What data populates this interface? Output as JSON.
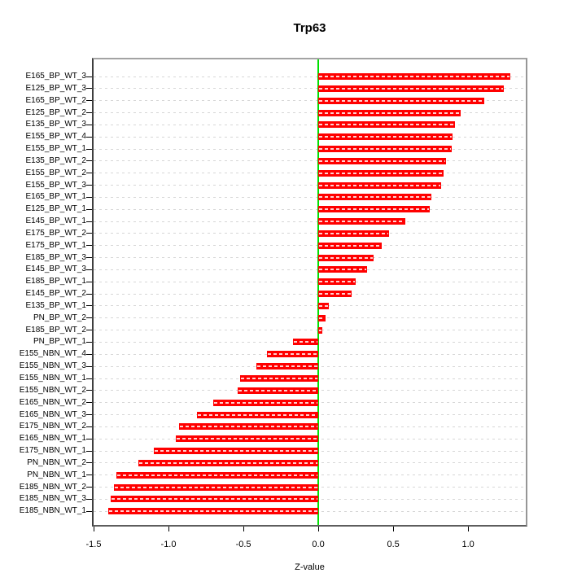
{
  "title": "Trp63",
  "chart_data": {
    "type": "bar",
    "orientation": "horizontal",
    "title": "Trp63",
    "xlabel": "Z-value",
    "ylabel": "",
    "xlim": [
      -1.5,
      1.385
    ],
    "grid": "horizontal-dashed",
    "legend": "none",
    "bar_color": "#ff0000",
    "zero_line_color": "#00e000",
    "gridline_color": "#d6d6d6",
    "x_ticks": [
      -1.5,
      -1.0,
      -0.5,
      0.0,
      0.5,
      1.0
    ],
    "x_tick_labels": [
      "-1.5",
      "-1.0",
      "-0.5",
      "0.0",
      "0.5",
      "1.0"
    ],
    "categories": [
      "E165_BP_WT_3",
      "E125_BP_WT_3",
      "E165_BP_WT_2",
      "E125_BP_WT_2",
      "E135_BP_WT_3",
      "E155_BP_WT_4",
      "E155_BP_WT_1",
      "E135_BP_WT_2",
      "E155_BP_WT_2",
      "E155_BP_WT_3",
      "E165_BP_WT_1",
      "E125_BP_WT_1",
      "E145_BP_WT_1",
      "E175_BP_WT_2",
      "E175_BP_WT_1",
      "E185_BP_WT_3",
      "E145_BP_WT_3",
      "E185_BP_WT_1",
      "E145_BP_WT_2",
      "E135_BP_WT_1",
      "PN_BP_WT_2",
      "E185_BP_WT_2",
      "PN_BP_WT_1",
      "E155_NBN_WT_4",
      "E155_NBN_WT_3",
      "E155_NBN_WT_1",
      "E155_NBN_WT_2",
      "E165_NBN_WT_2",
      "E165_NBN_WT_3",
      "E175_NBN_WT_2",
      "E165_NBN_WT_1",
      "E175_NBN_WT_1",
      "PN_NBN_WT_2",
      "PN_NBN_WT_1",
      "E185_NBN_WT_2",
      "E185_NBN_WT_3",
      "E185_NBN_WT_1"
    ],
    "values": [
      1.28,
      1.24,
      1.11,
      0.95,
      0.91,
      0.895,
      0.89,
      0.85,
      0.835,
      0.82,
      0.757,
      0.745,
      0.58,
      0.473,
      0.423,
      0.367,
      0.328,
      0.252,
      0.22,
      0.07,
      0.05,
      0.025,
      -0.17,
      -0.345,
      -0.415,
      -0.52,
      -0.54,
      -0.7,
      -0.81,
      -0.928,
      -0.95,
      -1.1,
      -1.2,
      -1.35,
      -1.365,
      -1.385,
      -1.4
    ]
  }
}
